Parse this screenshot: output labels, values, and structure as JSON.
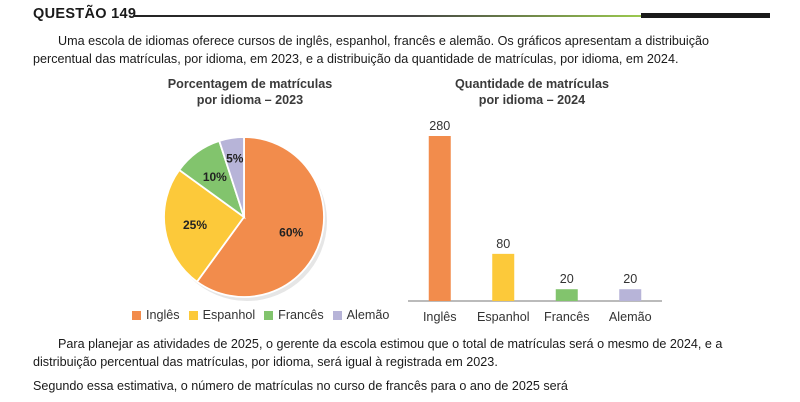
{
  "question": {
    "title": "QUESTÃO 149"
  },
  "intro": "Uma escola de idiomas oferece cursos de inglês, espanhol, francês e alemão. Os gráficos apresentam a distribuição percentual das matrículas, por idioma, em 2023, e a distribuição da quantidade de matrículas, por idioma, em 2024.",
  "chart_data": [
    {
      "type": "pie",
      "title_line1": "Porcentagem de matrículas",
      "title_line2": "por idioma – 2023",
      "categories": [
        "Inglês",
        "Espanhol",
        "Francês",
        "Alemão"
      ],
      "values": [
        60,
        25,
        10,
        5
      ],
      "labels": [
        "60%",
        "25%",
        "10%",
        "5%"
      ],
      "colors": [
        "#f28c4c",
        "#fcc93a",
        "#82c46d",
        "#b7b4d8"
      ],
      "legend": "bottom"
    },
    {
      "type": "bar",
      "title_line1": "Quantidade de matrículas",
      "title_line2": "por idioma – 2024",
      "categories": [
        "Inglês",
        "Espanhol",
        "Francês",
        "Alemão"
      ],
      "values": [
        280,
        80,
        20,
        20
      ],
      "labels": [
        "280",
        "80",
        "20",
        "20"
      ],
      "colors": [
        "#f28c4c",
        "#fcc93a",
        "#82c46d",
        "#b7b4d8"
      ],
      "ylim": [
        0,
        280
      ],
      "grid": false
    }
  ],
  "para2": "Para planejar as atividades de 2025, o gerente da escola estimou que o total de matrículas será o mesmo de 2024, e a distribuição percentual das matrículas, por idioma, será igual à registrada em 2023.",
  "para3": "Segundo essa estimativa, o número de matrículas no curso de francês para o ano de 2025 será"
}
